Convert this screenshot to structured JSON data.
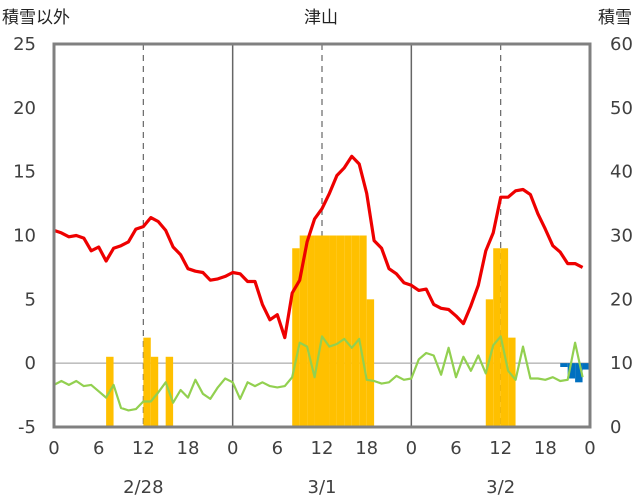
{
  "chart_data": {
    "type": "line",
    "title": "津山",
    "left_axis": {
      "label": "積雪以外",
      "range": [
        -5,
        25
      ],
      "ticks": [
        "25",
        "20",
        "15",
        "10",
        "5",
        "0",
        "-5"
      ]
    },
    "right_axis": {
      "label": "積雪",
      "range": [
        0,
        60
      ],
      "ticks": [
        "60",
        "50",
        "40",
        "30",
        "20",
        "10",
        "0"
      ]
    },
    "x_hours": {
      "range": [
        0,
        72
      ],
      "ticks": [
        "0",
        "6",
        "12",
        "18",
        "0",
        "6",
        "12",
        "18",
        "0",
        "6",
        "12",
        "18",
        "0"
      ]
    },
    "day_labels": [
      {
        "text": "2/28",
        "center_hour": 12
      },
      {
        "text": "3/1",
        "center_hour": 36
      },
      {
        "text": "3/2",
        "center_hour": 60
      }
    ],
    "grid": "dashed verticals at hour 12, 36, 60; solid separators at hour 24, 48",
    "colors": {
      "red_line": "#ee0000",
      "green_line": "#92d050",
      "orange_bars": "#ffc000",
      "blue_bars": "#0070c0",
      "purple_line": "#7030a0",
      "frame": "#808080"
    },
    "series": [
      {
        "style": "red-line",
        "axis": "left",
        "x": [
          0,
          1,
          2,
          3,
          4,
          5,
          6,
          7,
          8,
          9,
          10,
          11,
          12,
          13,
          14,
          15,
          16,
          17,
          18,
          19,
          20,
          21,
          22,
          23,
          24,
          25,
          26,
          27,
          28,
          29,
          30,
          31,
          32,
          33,
          34,
          35,
          36,
          37,
          38,
          39,
          40,
          41,
          42,
          43,
          44,
          45,
          46,
          47,
          48,
          49,
          50,
          51,
          52,
          53,
          54,
          55,
          56,
          57,
          58,
          59,
          60,
          61,
          62,
          63,
          64,
          65,
          66,
          67,
          68,
          69,
          70,
          71,
          72
        ],
        "values": [
          10.4,
          10.2,
          9.9,
          10,
          9.8,
          8.8,
          9.1,
          8,
          9,
          9.2,
          9.5,
          10.5,
          10.7,
          11.4,
          11.1,
          10.4,
          9.1,
          8.5,
          7.4,
          7.2,
          7.1,
          6.5,
          6.6,
          6.8,
          7.1,
          7,
          6.4,
          6.4,
          4.6,
          3.4,
          3.8,
          2,
          5.5,
          6.5,
          9.5,
          11.3,
          12.1,
          13.3,
          14.7,
          15.3,
          16.2,
          15.6,
          13.3,
          9.6,
          9,
          7.4,
          7,
          6.3,
          6.1,
          5.7,
          5.8,
          4.6,
          4.3,
          4.2,
          3.7,
          3.1,
          4.5,
          6.1,
          8.8,
          10.2,
          13,
          13,
          13.5,
          13.6,
          13.2,
          11.7,
          10.5,
          9.2,
          8.7,
          7.8,
          7.8,
          7.5,
          null
        ]
      },
      {
        "style": "green-line",
        "axis": "left",
        "x": [
          0,
          1,
          2,
          3,
          4,
          5,
          6,
          7,
          8,
          9,
          10,
          11,
          12,
          13,
          14,
          15,
          16,
          17,
          18,
          19,
          20,
          21,
          22,
          23,
          24,
          25,
          26,
          27,
          28,
          29,
          30,
          31,
          32,
          33,
          34,
          35,
          36,
          37,
          38,
          39,
          40,
          41,
          42,
          43,
          44,
          45,
          46,
          47,
          48,
          49,
          50,
          51,
          52,
          53,
          54,
          55,
          56,
          57,
          58,
          59,
          60,
          61,
          62,
          63,
          64,
          65,
          66,
          67,
          68,
          69,
          70,
          71,
          72
        ],
        "values": [
          -1.7,
          -1.4,
          -1.7,
          -1.4,
          -1.8,
          -1.7,
          -2.2,
          -2.7,
          -1.7,
          -3.5,
          -3.7,
          -3.6,
          -3,
          -3,
          -2.3,
          -1.5,
          -3.1,
          -2.1,
          -2.7,
          -1.3,
          -2.4,
          -2.8,
          -1.9,
          -1.2,
          -1.5,
          -2.8,
          -1.5,
          -1.8,
          -1.5,
          -1.8,
          -1.9,
          -1.8,
          -1.1,
          1.6,
          1.3,
          -1.1,
          2.1,
          1.3,
          1.5,
          1.9,
          1.2,
          1.9,
          -1.3,
          -1.4,
          -1.6,
          -1.5,
          -1,
          -1.3,
          -1.2,
          0.3,
          0.8,
          0.6,
          -0.9,
          1.2,
          -1.1,
          0.5,
          -0.6,
          0.6,
          -0.8,
          1.4,
          2.1,
          -0.6,
          -1.3,
          1.3,
          -1.2,
          -1.2,
          -1.3,
          -1.1,
          -1.4,
          -1.3,
          1.6,
          -1.1,
          null
        ]
      },
      {
        "style": "orange-bars",
        "axis": "right",
        "bar_start_hours": [
          7,
          12,
          13,
          15,
          32,
          33,
          34,
          35,
          36,
          37,
          38,
          39,
          40,
          41,
          42,
          58,
          59,
          60,
          61
        ],
        "values": [
          11,
          14,
          11,
          11,
          28,
          30,
          30,
          30,
          30,
          30,
          30,
          30,
          30,
          30,
          20,
          20,
          28,
          28,
          14
        ]
      },
      {
        "style": "blue-bars",
        "axis": "left",
        "bar_start_hours": [
          68,
          69,
          70,
          71
        ],
        "values": [
          -0.3,
          -1.2,
          -1.5,
          -0.5
        ]
      },
      {
        "style": "purple-line",
        "axis": "left",
        "x": [
          0,
          72
        ],
        "values": [
          -5,
          -5
        ]
      }
    ]
  }
}
